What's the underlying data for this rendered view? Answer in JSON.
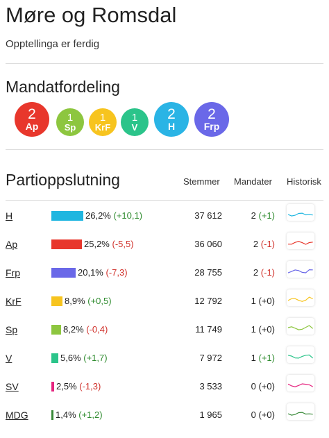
{
  "region": "Møre og Romsdal",
  "status": "Opptellinga er ferdig",
  "seat_section": {
    "title": "Mandatfordeling",
    "seats": [
      {
        "count": "2",
        "abbr": "Ap",
        "color": "#e8372c",
        "size": "large"
      },
      {
        "count": "1",
        "abbr": "Sp",
        "color": "#8dc63f",
        "size": "small"
      },
      {
        "count": "1",
        "abbr": "KrF",
        "color": "#f7c41f",
        "size": "small"
      },
      {
        "count": "1",
        "abbr": "V",
        "color": "#2bc48a",
        "size": "small"
      },
      {
        "count": "2",
        "abbr": "H",
        "color": "#2ab4e5",
        "size": "large"
      },
      {
        "count": "2",
        "abbr": "Frp",
        "color": "#6a68e8",
        "size": "large"
      }
    ]
  },
  "results": {
    "title": "Partioppslutning",
    "columns": {
      "votes": "Stemmer",
      "seats": "Mandater",
      "history": "Historisk"
    },
    "parties": [
      {
        "name": "H",
        "percent": "26,2%",
        "change": "(+10,1)",
        "change_sign": "pos",
        "share": 26.2,
        "color": "#1fb6e0",
        "votes": "37 612",
        "seats": "2",
        "seat_change": "(+1)",
        "seat_sign": "pos"
      },
      {
        "name": "Ap",
        "percent": "25,2%",
        "change": "(-5,5)",
        "change_sign": "neg",
        "share": 25.2,
        "color": "#e8372c",
        "votes": "36 060",
        "seats": "2",
        "seat_change": "(-1)",
        "seat_sign": "neg"
      },
      {
        "name": "Frp",
        "percent": "20,1%",
        "change": "(-7,3)",
        "change_sign": "neg",
        "share": 20.1,
        "color": "#6a68e8",
        "votes": "28 755",
        "seats": "2",
        "seat_change": "(-1)",
        "seat_sign": "neg"
      },
      {
        "name": "KrF",
        "percent": "8,9%",
        "change": "(+0,5)",
        "change_sign": "pos",
        "share": 8.9,
        "color": "#f7c41f",
        "votes": "12 792",
        "seats": "1",
        "seat_change": "(+0)",
        "seat_sign": "zero"
      },
      {
        "name": "Sp",
        "percent": "8,2%",
        "change": "(-0,4)",
        "change_sign": "neg",
        "share": 8.2,
        "color": "#8dc63f",
        "votes": "11 749",
        "seats": "1",
        "seat_change": "(+0)",
        "seat_sign": "zero"
      },
      {
        "name": "V",
        "percent": "5,6%",
        "change": "(+1,7)",
        "change_sign": "pos",
        "share": 5.6,
        "color": "#2bc48a",
        "votes": "7 972",
        "seats": "1",
        "seat_change": "(+1)",
        "seat_sign": "pos"
      },
      {
        "name": "SV",
        "percent": "2,5%",
        "change": "(-1,3)",
        "change_sign": "neg",
        "share": 2.5,
        "color": "#e5247f",
        "votes": "3 533",
        "seats": "0",
        "seat_change": "(+0)",
        "seat_sign": "zero"
      },
      {
        "name": "MDG",
        "percent": "1,4%",
        "change": "(+1,2)",
        "change_sign": "pos",
        "share": 1.4,
        "color": "#3a8a3a",
        "votes": "1 965",
        "seats": "0",
        "seat_change": "(+0)",
        "seat_sign": "zero"
      }
    ]
  }
}
